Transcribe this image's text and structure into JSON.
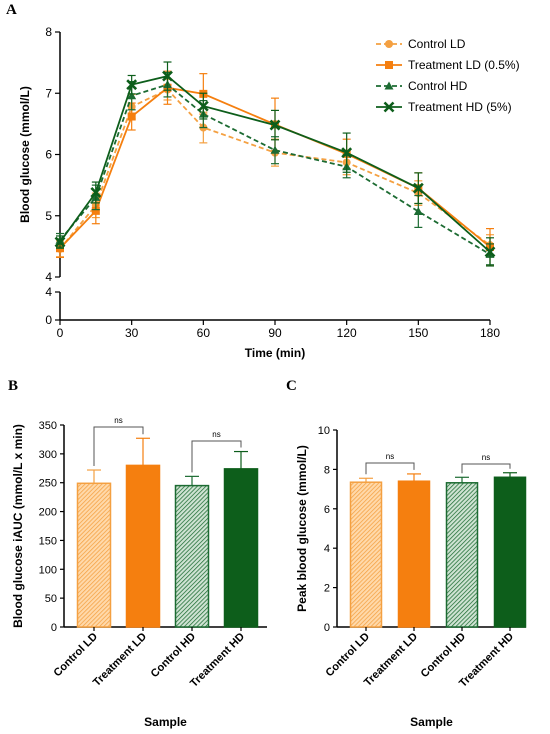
{
  "colors": {
    "control_ld": "#f4a041",
    "treatment_ld": "#f57f0f",
    "control_hd": "#1c6b32",
    "treatment_hd": "#0d5e1b",
    "axis": "#000000",
    "error_bar": "#333333"
  },
  "chart_data": [
    {
      "panel": "A",
      "type": "line",
      "xlabel": "Time (min)",
      "ylabel": "Blood glucose (mmol/L)",
      "x": [
        0,
        15,
        30,
        45,
        60,
        90,
        120,
        150,
        180
      ],
      "xticks": [
        0,
        30,
        60,
        90,
        120,
        150,
        180
      ],
      "ylim": [
        4,
        8
      ],
      "yticks_upper": [
        4,
        5,
        6,
        7,
        8
      ],
      "yticks_lower": [
        0,
        4
      ],
      "axis_break": true,
      "legend_position": "top-right",
      "series": [
        {
          "name": "Control LD",
          "marker": "circle",
          "dashed": true,
          "color_key": "control_ld",
          "values": [
            4.46,
            5.17,
            6.78,
            7.06,
            6.44,
            6.03,
            5.87,
            5.37,
            4.52
          ],
          "errors": [
            0.13,
            0.2,
            0.2,
            0.17,
            0.25,
            0.22,
            0.2,
            0.2,
            0.17
          ]
        },
        {
          "name": "Treatment LD (0.5%)",
          "marker": "square",
          "dashed": false,
          "color_key": "treatment_ld",
          "values": [
            4.47,
            5.08,
            6.62,
            7.09,
            6.99,
            6.49,
            6.01,
            5.45,
            4.49
          ],
          "errors": [
            0.15,
            0.21,
            0.22,
            0.27,
            0.33,
            0.43,
            0.24,
            0.25,
            0.3
          ]
        },
        {
          "name": "Control HD",
          "marker": "triangle",
          "dashed": true,
          "color_key": "control_hd",
          "values": [
            4.6,
            5.3,
            6.96,
            7.14,
            6.66,
            6.07,
            5.8,
            5.07,
            4.37
          ],
          "errors": [
            0.11,
            0.2,
            0.23,
            0.2,
            0.22,
            0.22,
            0.18,
            0.26,
            0.17
          ]
        },
        {
          "name": "Treatment HD (5%)",
          "marker": "x",
          "dashed": false,
          "color_key": "treatment_hd",
          "values": [
            4.57,
            5.38,
            7.14,
            7.28,
            6.79,
            6.48,
            6.03,
            5.45,
            4.41
          ],
          "errors": [
            0.1,
            0.17,
            0.15,
            0.23,
            0.21,
            0.24,
            0.32,
            0.25,
            0.23
          ]
        }
      ]
    },
    {
      "panel": "B",
      "type": "bar",
      "xlabel": "Sample",
      "ylabel": "Blood glucose iAUC (mmol/L x min)",
      "categories": [
        "Control LD",
        "Treatment LD",
        "Control HD",
        "Treatment HD"
      ],
      "values": [
        249,
        280,
        245,
        274
      ],
      "errors": [
        23,
        47,
        16,
        30
      ],
      "ylim": [
        0,
        350
      ],
      "yticks": [
        0,
        50,
        100,
        150,
        200,
        250,
        300,
        350
      ],
      "significance": [
        {
          "pair": [
            0,
            1
          ],
          "label": "ns"
        },
        {
          "pair": [
            2,
            3
          ],
          "label": "ns"
        }
      ]
    },
    {
      "panel": "C",
      "type": "bar",
      "xlabel": "Sample",
      "ylabel": "Peak blood glucose (mmol/L)",
      "categories": [
        "Control LD",
        "Treatment LD",
        "Control HD",
        "Treatment HD"
      ],
      "values": [
        7.35,
        7.4,
        7.32,
        7.6
      ],
      "errors": [
        0.2,
        0.37,
        0.28,
        0.23
      ],
      "ylim": [
        0,
        10
      ],
      "yticks": [
        0,
        2,
        4,
        6,
        8,
        10
      ],
      "significance": [
        {
          "pair": [
            0,
            1
          ],
          "label": "ns"
        },
        {
          "pair": [
            2,
            3
          ],
          "label": "ns"
        }
      ]
    }
  ]
}
